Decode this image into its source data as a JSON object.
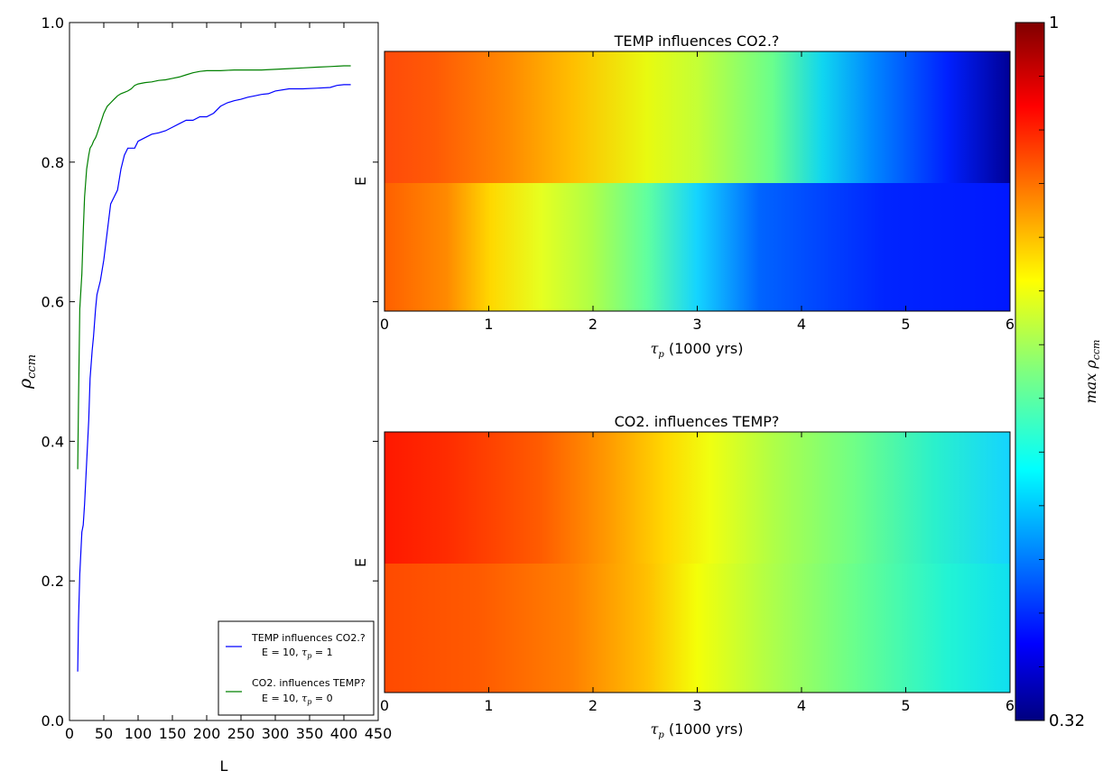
{
  "chart_data": [
    {
      "type": "line",
      "xlabel": "L",
      "ylabel_symbol": "ρ",
      "ylabel_sub": "ccm",
      "xlim": [
        0,
        450
      ],
      "ylim": [
        0,
        1.0
      ],
      "xticks": [
        0,
        50,
        100,
        150,
        200,
        250,
        300,
        350,
        400,
        450
      ],
      "yticks": [
        "0.0",
        "0.2",
        "0.4",
        "0.6",
        "0.8",
        "1.0"
      ],
      "legend_position": "lower-right",
      "series": [
        {
          "name": "TEMP influences CO2.?",
          "params_label": "E = 10, ",
          "tau_sym": "τ",
          "tau_sub": "p",
          "tau_val": " = 1",
          "color": "#0000ff",
          "x": [
            12,
            13,
            15,
            18,
            20,
            22,
            25,
            28,
            30,
            33,
            35,
            38,
            40,
            45,
            50,
            55,
            60,
            65,
            70,
            75,
            80,
            85,
            90,
            95,
            100,
            110,
            120,
            130,
            140,
            150,
            160,
            170,
            180,
            190,
            200,
            210,
            220,
            230,
            240,
            250,
            260,
            270,
            280,
            290,
            300,
            320,
            340,
            360,
            380,
            390,
            400,
            410
          ],
          "y": [
            0.07,
            0.14,
            0.21,
            0.27,
            0.28,
            0.31,
            0.37,
            0.43,
            0.49,
            0.53,
            0.55,
            0.59,
            0.61,
            0.63,
            0.66,
            0.7,
            0.74,
            0.75,
            0.76,
            0.79,
            0.81,
            0.82,
            0.82,
            0.82,
            0.83,
            0.835,
            0.84,
            0.842,
            0.845,
            0.85,
            0.855,
            0.86,
            0.86,
            0.865,
            0.865,
            0.87,
            0.88,
            0.885,
            0.888,
            0.89,
            0.893,
            0.895,
            0.897,
            0.898,
            0.902,
            0.905,
            0.905,
            0.906,
            0.907,
            0.91,
            0.911,
            0.911
          ]
        },
        {
          "name": "CO2. influences TEMP?",
          "params_label": "E = 10, ",
          "tau_sym": "τ",
          "tau_sub": "p",
          "tau_val": " = 0",
          "color": "#008000",
          "x": [
            12,
            13,
            15,
            18,
            20,
            22,
            25,
            28,
            30,
            33,
            35,
            38,
            40,
            45,
            50,
            55,
            60,
            65,
            70,
            75,
            80,
            85,
            90,
            95,
            100,
            110,
            120,
            130,
            140,
            150,
            160,
            170,
            180,
            190,
            200,
            220,
            240,
            260,
            280,
            300,
            320,
            340,
            360,
            380,
            400,
            410
          ],
          "y": [
            0.36,
            0.45,
            0.59,
            0.64,
            0.7,
            0.75,
            0.79,
            0.81,
            0.82,
            0.825,
            0.83,
            0.835,
            0.84,
            0.855,
            0.87,
            0.88,
            0.885,
            0.89,
            0.895,
            0.898,
            0.9,
            0.902,
            0.905,
            0.91,
            0.912,
            0.914,
            0.915,
            0.917,
            0.918,
            0.92,
            0.922,
            0.925,
            0.928,
            0.93,
            0.931,
            0.931,
            0.932,
            0.932,
            0.932,
            0.933,
            0.934,
            0.935,
            0.936,
            0.937,
            0.938,
            0.938
          ]
        }
      ]
    },
    {
      "type": "heatmap",
      "title": "TEMP influences CO2.?",
      "xlabel_sym": "τ",
      "xlabel_sub": "p",
      "xlabel_rest": " (1000 yrs)",
      "ylabel": "E",
      "xlim": [
        0,
        6
      ],
      "xticks": [
        0,
        1,
        2,
        3,
        4,
        5,
        6
      ],
      "grid": false,
      "stops_top": [
        [
          0.0,
          "#ff4a0a"
        ],
        [
          0.08,
          "#ff5a05"
        ],
        [
          0.2,
          "#ff8a00"
        ],
        [
          0.3,
          "#ffbe00"
        ],
        [
          0.42,
          "#e8fa10"
        ],
        [
          0.5,
          "#c4ff36"
        ],
        [
          0.62,
          "#6aff8c"
        ],
        [
          0.7,
          "#10d6f0"
        ],
        [
          0.78,
          "#0088ff"
        ],
        [
          0.9,
          "#0020ff"
        ],
        [
          1.0,
          "#000096"
        ]
      ],
      "stops_bottom": [
        [
          0.0,
          "#ff6000"
        ],
        [
          0.1,
          "#ff8a00"
        ],
        [
          0.17,
          "#ffd800"
        ],
        [
          0.25,
          "#e6ff20"
        ],
        [
          0.33,
          "#b0ff46"
        ],
        [
          0.42,
          "#60ffa0"
        ],
        [
          0.5,
          "#14d4ff"
        ],
        [
          0.6,
          "#0064ff"
        ],
        [
          0.8,
          "#0024ff"
        ],
        [
          1.0,
          "#0018ff"
        ]
      ]
    },
    {
      "type": "heatmap",
      "title": "CO2. influences TEMP?",
      "xlabel_sym": "τ",
      "xlabel_sub": "p",
      "xlabel_rest": " (1000 yrs)",
      "ylabel": "E",
      "xlim": [
        0,
        6
      ],
      "xticks": [
        0,
        1,
        2,
        3,
        4,
        5,
        6
      ],
      "grid": false,
      "stops_top": [
        [
          0.0,
          "#ff1800"
        ],
        [
          0.1,
          "#ff2c00"
        ],
        [
          0.25,
          "#ff5c00"
        ],
        [
          0.36,
          "#ff9c00"
        ],
        [
          0.45,
          "#ffd800"
        ],
        [
          0.52,
          "#f0ff10"
        ],
        [
          0.62,
          "#b0ff46"
        ],
        [
          0.75,
          "#70ff86"
        ],
        [
          0.88,
          "#2af0cc"
        ],
        [
          1.0,
          "#14d4ff"
        ]
      ],
      "stops_bottom": [
        [
          0.0,
          "#ff4a00"
        ],
        [
          0.15,
          "#ff5a00"
        ],
        [
          0.3,
          "#ff8000"
        ],
        [
          0.42,
          "#ffc000"
        ],
        [
          0.5,
          "#f4ff08"
        ],
        [
          0.6,
          "#b8ff40"
        ],
        [
          0.75,
          "#6aff8c"
        ],
        [
          0.9,
          "#22f4d4"
        ],
        [
          1.0,
          "#10e0f0"
        ]
      ]
    }
  ],
  "colorbar": {
    "label_prefix": "max ",
    "label_sym": "ρ",
    "label_sub": "ccm",
    "max_label": "1",
    "min_label": "0.32",
    "vmax": 1,
    "vmin": 0.32,
    "stops": [
      [
        0.0,
        "#000080"
      ],
      [
        0.11,
        "#0000ff"
      ],
      [
        0.36,
        "#00ffff"
      ],
      [
        0.5,
        "#7fff7f"
      ],
      [
        0.63,
        "#ffff00"
      ],
      [
        0.88,
        "#ff0000"
      ],
      [
        1.0,
        "#800000"
      ]
    ]
  }
}
